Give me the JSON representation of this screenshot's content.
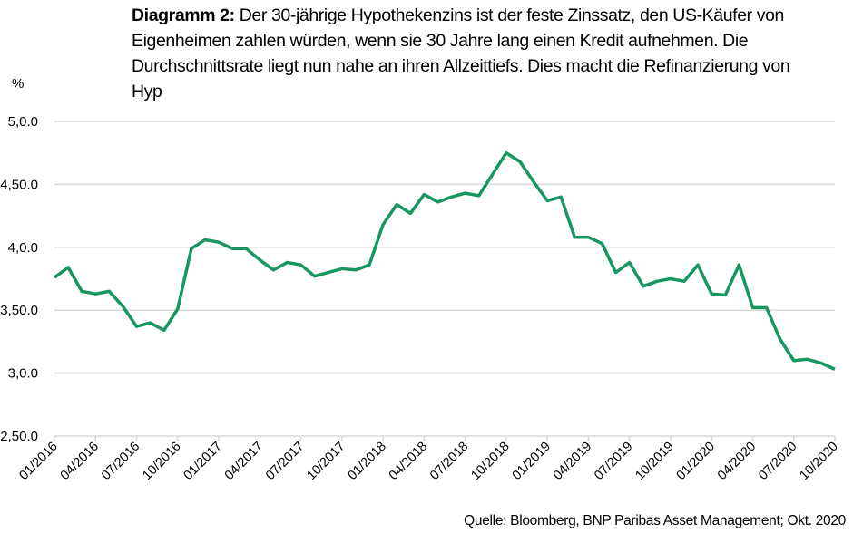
{
  "title": {
    "bold": "Diagramm 2:",
    "text": " Der 30-jährige Hypothekenzins ist der feste Zinssatz, den US-Käufer von Eigenheimen zahlen würden, wenn sie 30 Jahre lang einen Kredit aufnehmen. Die Durchschnittsrate liegt nun nahe an ihren Allzeittiefs. Dies macht die Refinanzierung von Hyp"
  },
  "source": "Quelle:  Bloomberg, BNP Paribas Asset Management; Okt. 2020",
  "chart_data": {
    "type": "line",
    "ylabel": "%",
    "ylim": [
      2.5,
      5.0
    ],
    "yticks": [
      5.0,
      4.5,
      4.0,
      3.5,
      3.0,
      2.5
    ],
    "ytick_labels": [
      "5,0.0",
      "4,50.0",
      "4,0.0",
      "3,50.0",
      "3,0.0",
      "2,50.0"
    ],
    "xtick_labels": [
      "01/2016",
      "04/2016",
      "07/2016",
      "10/2016",
      "01/2017",
      "04/2017",
      "07/2017",
      "10/2017",
      "01/2018",
      "04/2018",
      "07/2018",
      "10/2018",
      "01/2019",
      "04/2019",
      "07/2019",
      "10/2019",
      "01/2020",
      "04/2020",
      "07/2020",
      "10/2020"
    ],
    "x_start": "01/2016",
    "x_end": "10/2020",
    "x_frequency": "monthly",
    "grid": "horizontal",
    "series": [
      {
        "color": "#17975F",
        "values": [
          3.76,
          3.84,
          3.65,
          3.63,
          3.65,
          3.53,
          3.37,
          3.4,
          3.34,
          3.51,
          3.99,
          4.06,
          4.04,
          3.99,
          3.99,
          3.9,
          3.82,
          3.88,
          3.86,
          3.77,
          3.8,
          3.83,
          3.82,
          3.86,
          4.18,
          4.34,
          4.27,
          4.42,
          4.36,
          4.4,
          4.43,
          4.41,
          4.58,
          4.75,
          4.68,
          4.52,
          4.37,
          4.4,
          4.08,
          4.08,
          4.03,
          3.8,
          3.88,
          3.69,
          3.73,
          3.75,
          3.73,
          3.86,
          3.63,
          3.62,
          3.86,
          3.52,
          3.52,
          3.27,
          3.1,
          3.11,
          3.08,
          3.03
        ]
      }
    ]
  }
}
